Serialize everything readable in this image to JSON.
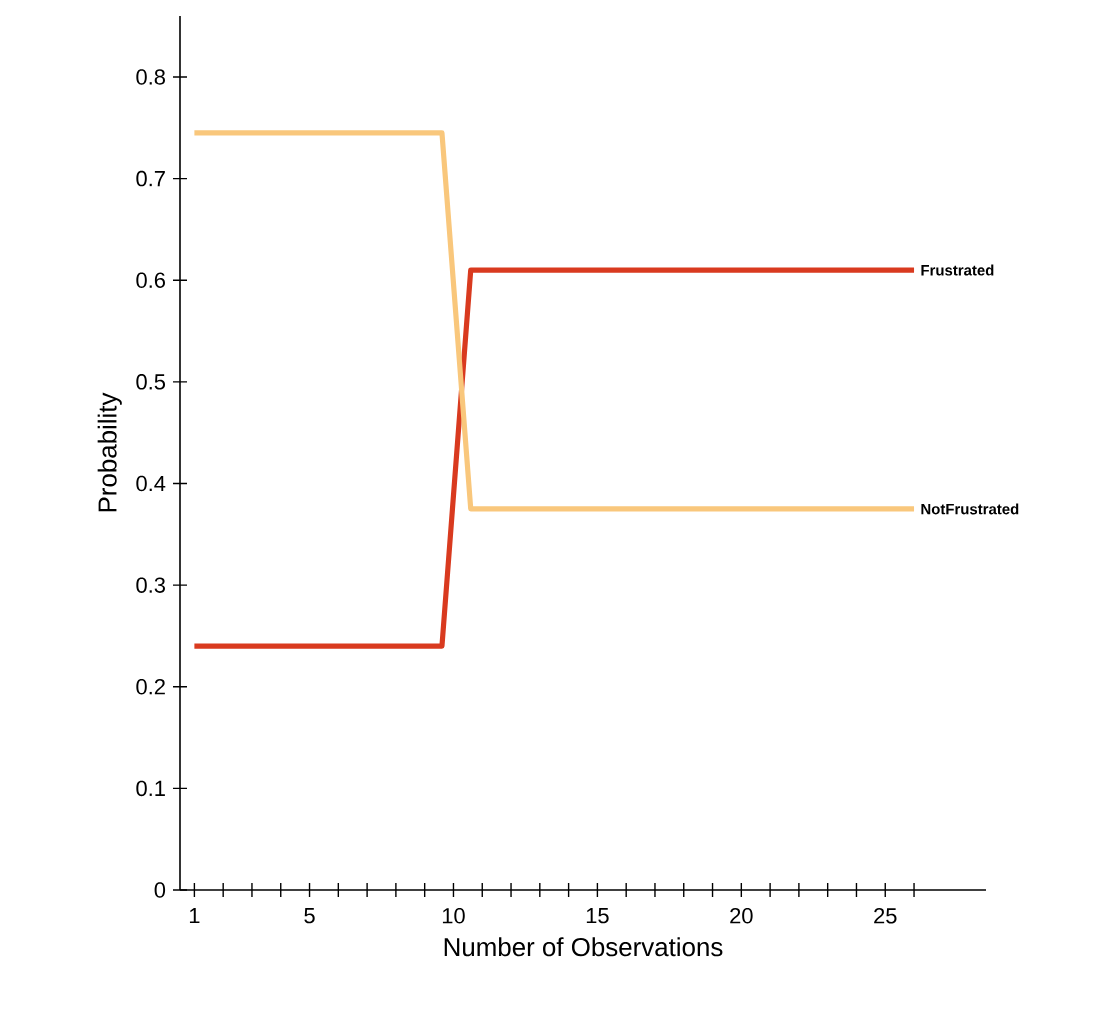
{
  "chart_data": {
    "type": "line",
    "xlabel": "Number of Observations",
    "ylabel": "Probability",
    "series": [
      {
        "name": "Frustrated",
        "color": "#d93a1f",
        "x": [
          1,
          9.6,
          10.6,
          26
        ],
        "values": [
          0.24,
          0.24,
          0.61,
          0.61
        ]
      },
      {
        "name": "NotFrustrated",
        "color": "#f9c77c",
        "x": [
          1,
          9.6,
          10.6,
          26
        ],
        "values": [
          0.745,
          0.745,
          0.375,
          0.375
        ]
      }
    ],
    "xlim": [
      0.5,
      28.5
    ],
    "ylim": [
      0,
      0.86
    ],
    "xticks": [
      1,
      {
        "value": 2,
        "label": null
      },
      {
        "value": 3,
        "label": null
      },
      {
        "value": 4,
        "label": null
      },
      5,
      {
        "value": 6,
        "label": null
      },
      {
        "value": 7,
        "label": null
      },
      {
        "value": 8,
        "label": null
      },
      {
        "value": 9,
        "label": null
      },
      10,
      {
        "value": 11,
        "label": null
      },
      {
        "value": 12,
        "label": null
      },
      {
        "value": 13,
        "label": null
      },
      {
        "value": 14,
        "label": null
      },
      15,
      {
        "value": 16,
        "label": null
      },
      {
        "value": 17,
        "label": null
      },
      {
        "value": 18,
        "label": null
      },
      {
        "value": 19,
        "label": null
      },
      20,
      {
        "value": 21,
        "label": null
      },
      {
        "value": 22,
        "label": null
      },
      {
        "value": 23,
        "label": null
      },
      {
        "value": 24,
        "label": null
      },
      25,
      {
        "value": 26,
        "label": null
      }
    ],
    "yticks": [
      0,
      0.1,
      0.2,
      0.3,
      0.4,
      0.5,
      0.6,
      0.7,
      0.8
    ],
    "grid": false,
    "legend": false,
    "marker": "none",
    "line_style": "solid"
  }
}
